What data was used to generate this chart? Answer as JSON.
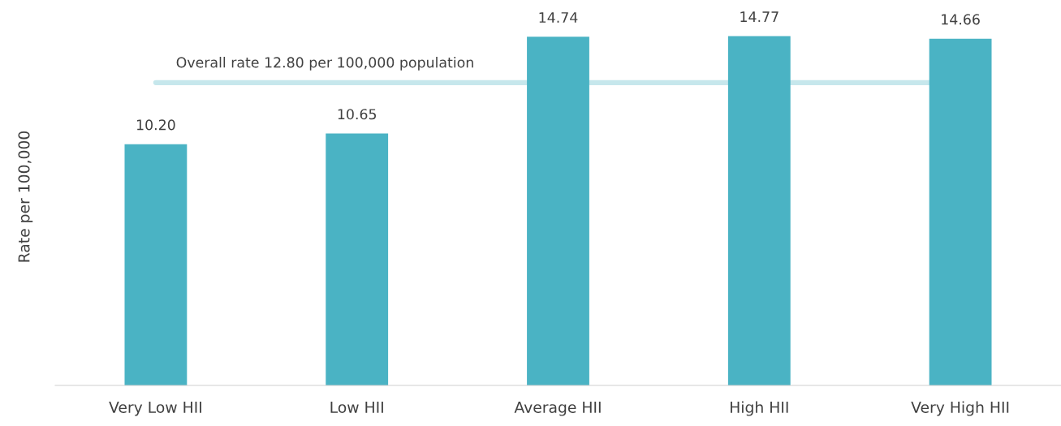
{
  "chart_data": {
    "type": "bar",
    "ylabel": "Rate per 100,000",
    "categories": [
      "Very Low HII",
      "Low HII",
      "Average HII",
      "High HII",
      "Very High HII"
    ],
    "values": [
      10.2,
      10.65,
      14.74,
      14.77,
      14.66
    ],
    "value_labels": [
      "10.20",
      "10.65",
      "14.74",
      "14.77",
      "14.66"
    ],
    "color": "#4ab3c4",
    "ref_lines": [
      {
        "axis": "y",
        "value": 12.8,
        "label": "Overall rate 12.80 per 100,000 population",
        "color": "#c6e7ec"
      }
    ],
    "tick_labels": "x",
    "grid": false,
    "legend": false
  }
}
